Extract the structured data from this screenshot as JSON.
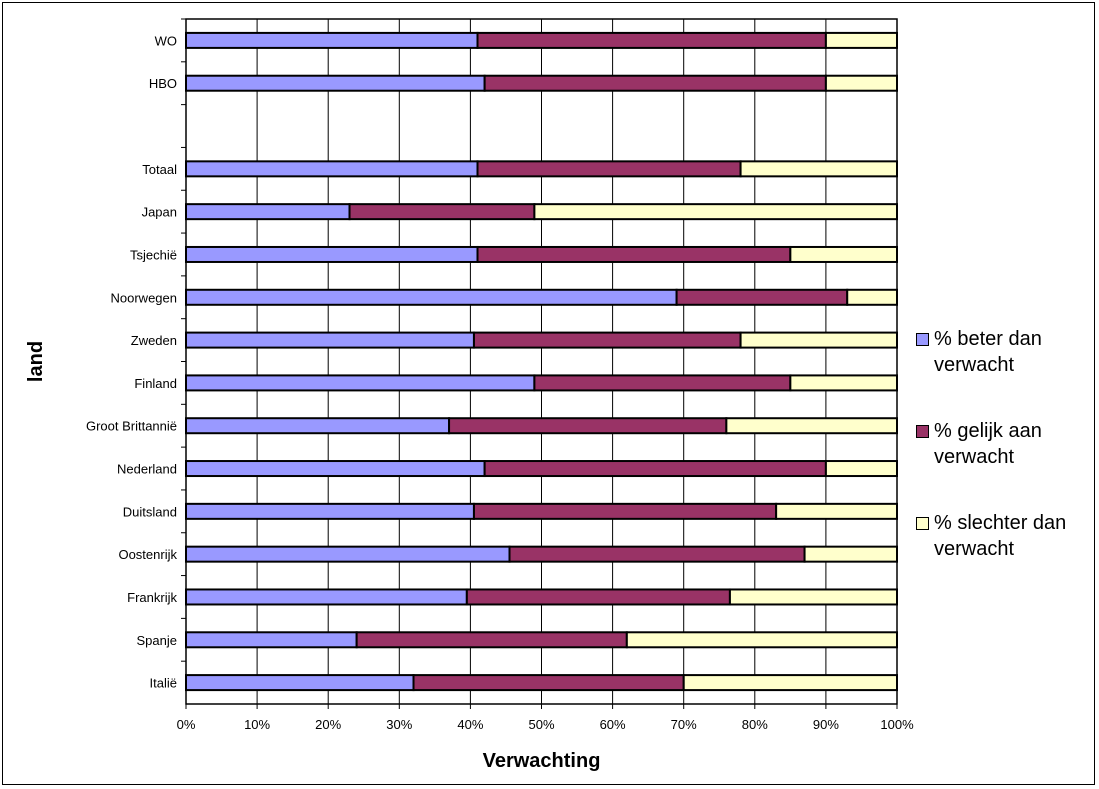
{
  "chart_data": {
    "type": "bar",
    "orientation": "horizontal",
    "stacked": "percent",
    "xlabel": "Verwachting",
    "ylabel": "land",
    "xlim": [
      0,
      100
    ],
    "x_ticks": [
      "0%",
      "10%",
      "20%",
      "30%",
      "40%",
      "50%",
      "60%",
      "70%",
      "80%",
      "90%",
      "100%"
    ],
    "grid": "vertical",
    "legend_position": "right",
    "categories": [
      "WO",
      "HBO",
      "",
      "Totaal",
      "Japan",
      "Tsjechië",
      "Noorwegen",
      "Zweden",
      "Finland",
      "Groot Brittannië",
      "Nederland",
      "Duitsland",
      "Oostenrijk",
      "Frankrijk",
      "Spanje",
      "Italië"
    ],
    "series": [
      {
        "name": "% beter dan verwacht",
        "color": "#9999ff",
        "values": [
          41,
          42,
          null,
          41,
          23,
          41,
          69,
          40.5,
          49,
          37,
          42,
          40.5,
          45.5,
          39.5,
          24,
          32
        ]
      },
      {
        "name": "% gelijk aan verwacht",
        "color": "#993366",
        "values": [
          49,
          48,
          null,
          37,
          26,
          44,
          24,
          37.5,
          36,
          39,
          48,
          42.5,
          41.5,
          37,
          38,
          38
        ]
      },
      {
        "name": "% slechter dan verwacht",
        "color": "#ffffcc",
        "values": [
          10,
          10,
          null,
          22,
          51,
          15,
          7,
          22,
          15,
          24,
          10,
          17,
          13,
          23.5,
          38,
          30
        ]
      }
    ]
  }
}
